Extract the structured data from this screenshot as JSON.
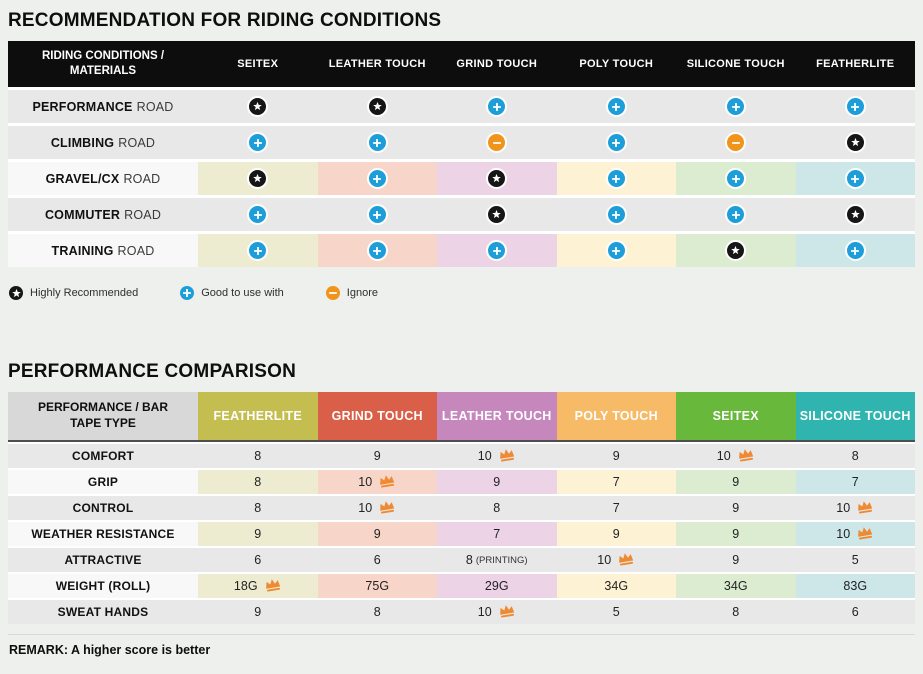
{
  "colors": {
    "page_bg": "#eef0ee",
    "row_gray": "#e8e8e8",
    "row_light": "#f8f8f8",
    "header1_bg": "#0d0d0d",
    "header1_text": "#ffffff",
    "header2_label_bg": "#d8d8d8",
    "column_tints": [
      "#edecd1",
      "#f7d6c9",
      "#ecd3e6",
      "#fdf3d4",
      "#dcecd1",
      "#cde6e8"
    ],
    "icon_star": "#161616",
    "icon_plus": "#1d9ed9",
    "icon_minus": "#f0941c",
    "crown": "#ef8a33"
  },
  "chart_data": [
    {
      "type": "table",
      "title": "RECOMMENDATION FOR RIDING CONDITIONS",
      "corner_header": "RIDING CONDITIONS / MATERIALS",
      "columns": [
        "SEITEX",
        "LEATHER TOUCH",
        "GRIND TOUCH",
        "POLY TOUCH",
        "SILICONE TOUCH",
        "FEATHERLITE"
      ],
      "rows": [
        {
          "label_bold": "PERFORMANCE",
          "label_rest": "ROAD",
          "tinted": false,
          "icons": [
            "star",
            "star",
            "plus",
            "plus",
            "plus",
            "plus"
          ]
        },
        {
          "label_bold": "CLIMBING",
          "label_rest": "ROAD",
          "tinted": false,
          "icons": [
            "plus",
            "plus",
            "minus",
            "plus",
            "minus",
            "star"
          ]
        },
        {
          "label_bold": "GRAVEL/CX",
          "label_rest": "ROAD",
          "tinted": true,
          "icons": [
            "star",
            "plus",
            "star",
            "plus",
            "plus",
            "plus"
          ]
        },
        {
          "label_bold": "COMMUTER",
          "label_rest": "ROAD",
          "tinted": false,
          "icons": [
            "plus",
            "plus",
            "star",
            "plus",
            "plus",
            "star"
          ]
        },
        {
          "label_bold": "TRAINING",
          "label_rest": "ROAD",
          "tinted": true,
          "icons": [
            "plus",
            "plus",
            "plus",
            "plus",
            "star",
            "plus"
          ]
        }
      ],
      "legend": [
        {
          "icon": "star",
          "label": "Highly Recommended"
        },
        {
          "icon": "plus",
          "label": "Good to use with"
        },
        {
          "icon": "minus",
          "label": "Ignore"
        }
      ]
    },
    {
      "type": "table",
      "title": "PERFORMANCE COMPARISON",
      "corner_header": "PERFORMANCE / BAR TAPE TYPE",
      "columns": [
        {
          "label": "FEATHERLITE",
          "color": "#c4be51"
        },
        {
          "label": "GRIND TOUCH",
          "color": "#d95f48"
        },
        {
          "label": "LEATHER TOUCH",
          "color": "#c687bc"
        },
        {
          "label": "POLY TOUCH",
          "color": "#f7bb68"
        },
        {
          "label": "SEITEX",
          "color": "#68b83c"
        },
        {
          "label": "SILICONE TOUCH",
          "color": "#2fb4b0"
        }
      ],
      "rows": [
        {
          "label": "COMFORT",
          "tinted": false,
          "cells": [
            {
              "value": "8"
            },
            {
              "value": "9"
            },
            {
              "value": "10",
              "crown": true
            },
            {
              "value": "9"
            },
            {
              "value": "10",
              "crown": true
            },
            {
              "value": "8"
            }
          ]
        },
        {
          "label": "GRIP",
          "tinted": true,
          "cells": [
            {
              "value": "8"
            },
            {
              "value": "10",
              "crown": true
            },
            {
              "value": "9"
            },
            {
              "value": "7"
            },
            {
              "value": "9"
            },
            {
              "value": "7"
            }
          ]
        },
        {
          "label": "CONTROL",
          "tinted": false,
          "cells": [
            {
              "value": "8"
            },
            {
              "value": "10",
              "crown": true
            },
            {
              "value": "8"
            },
            {
              "value": "7"
            },
            {
              "value": "9"
            },
            {
              "value": "10",
              "crown": true
            }
          ]
        },
        {
          "label": "WEATHER RESISTANCE",
          "tinted": true,
          "cells": [
            {
              "value": "9"
            },
            {
              "value": "9"
            },
            {
              "value": "7"
            },
            {
              "value": "9"
            },
            {
              "value": "9"
            },
            {
              "value": "10",
              "crown": true
            }
          ]
        },
        {
          "label": "ATTRACTIVE",
          "tinted": false,
          "cells": [
            {
              "value": "6"
            },
            {
              "value": "6"
            },
            {
              "value": "8",
              "note": "(PRINTING)"
            },
            {
              "value": "10",
              "crown": true
            },
            {
              "value": "9"
            },
            {
              "value": "5"
            }
          ]
        },
        {
          "label": "WEIGHT (ROLL)",
          "tinted": true,
          "cells": [
            {
              "value": "18G",
              "crown": true
            },
            {
              "value": "75G"
            },
            {
              "value": "29G"
            },
            {
              "value": "34G"
            },
            {
              "value": "34G"
            },
            {
              "value": "83G"
            }
          ]
        },
        {
          "label": "SWEAT HANDS",
          "tinted": false,
          "cells": [
            {
              "value": "9"
            },
            {
              "value": "8"
            },
            {
              "value": "10",
              "crown": true
            },
            {
              "value": "5"
            },
            {
              "value": "8"
            },
            {
              "value": "6"
            }
          ]
        }
      ],
      "remark": "REMARK: A higher score is better"
    }
  ]
}
